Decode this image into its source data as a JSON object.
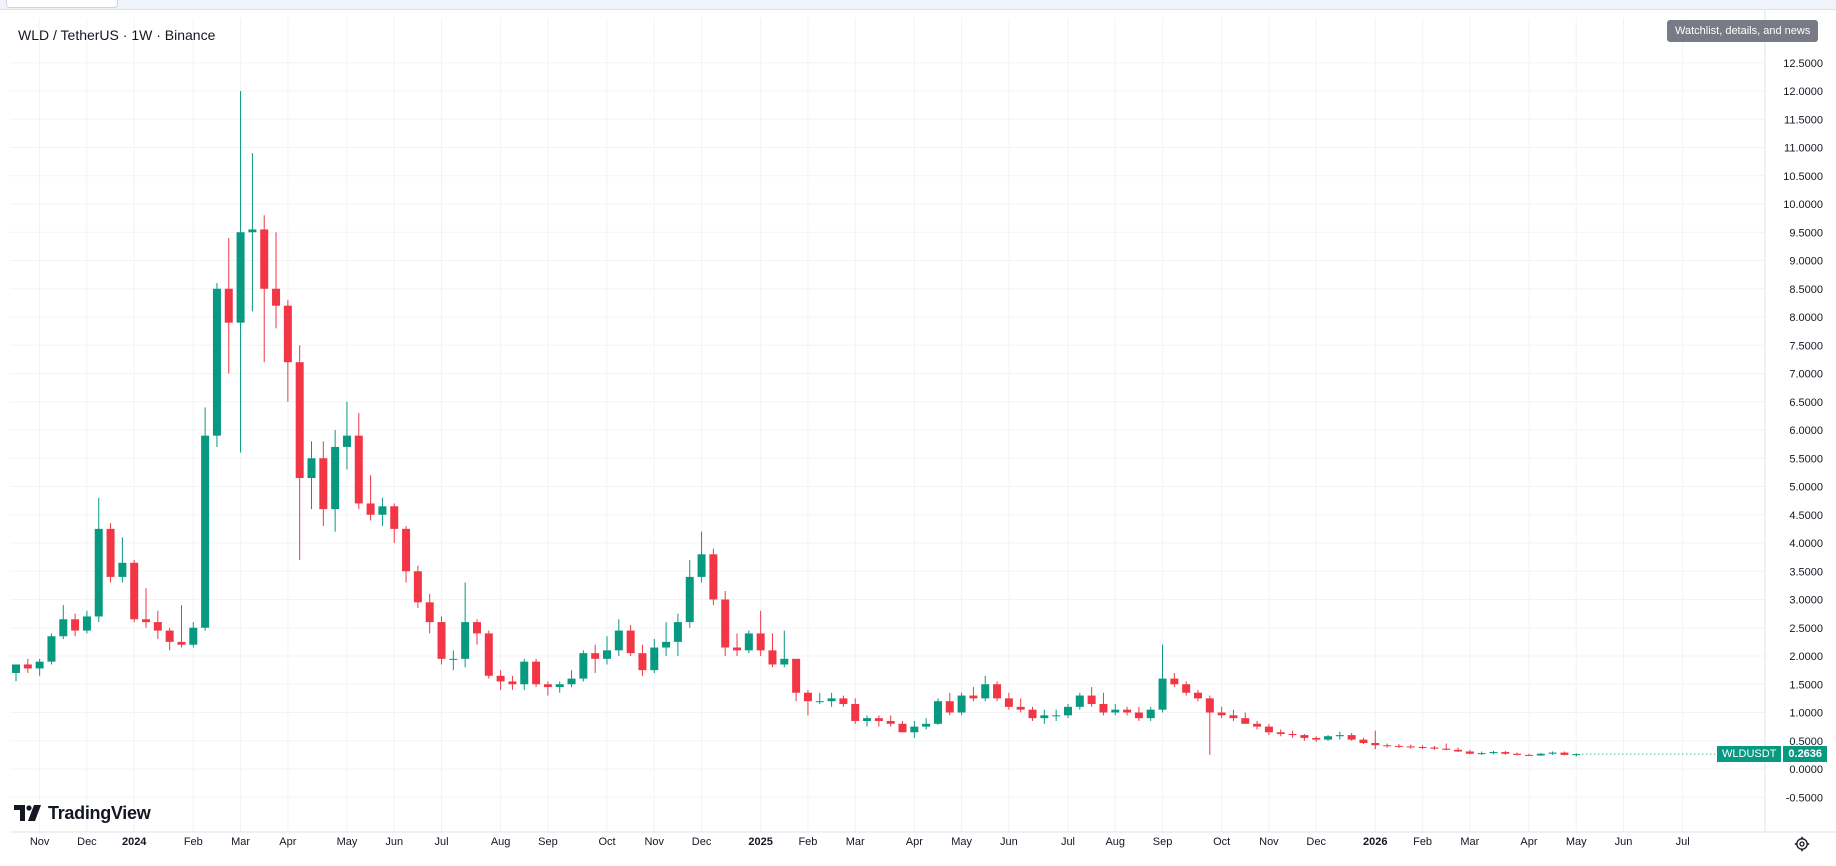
{
  "header": {
    "symbol_title": "WLD / TetherUS · 1W · Binance",
    "watchlist_button": "Watchlist, details, and news"
  },
  "brand": {
    "logo_text": "TradingView"
  },
  "last_price": {
    "symbol": "WLDUSDT",
    "value": "0.2636"
  },
  "colors": {
    "up": "#089981",
    "down": "#F23645",
    "grid": "#f2f3f5",
    "text": "#131722"
  },
  "chart_data": {
    "type": "candlestick",
    "title": "WLD / TetherUS · 1W · Binance",
    "xlabel": "",
    "ylabel": "",
    "ylim": [
      -0.7,
      12.9
    ],
    "grid": true,
    "y_ticks": [
      "12.5000",
      "12.0000",
      "11.5000",
      "11.0000",
      "10.5000",
      "10.0000",
      "9.5000",
      "9.0000",
      "8.5000",
      "8.0000",
      "7.5000",
      "7.0000",
      "6.5000",
      "6.0000",
      "5.5000",
      "5.0000",
      "4.5000",
      "4.0000",
      "3.5000",
      "3.0000",
      "2.5000",
      "2.0000",
      "1.5000",
      "1.0000",
      "0.5000",
      "0.0000",
      "-0.5000"
    ],
    "x_ticks": [
      {
        "label": "Nov",
        "week": 2,
        "bold": false
      },
      {
        "label": "Dec",
        "week": 6,
        "bold": false
      },
      {
        "label": "2024",
        "week": 10,
        "bold": true
      },
      {
        "label": "Feb",
        "week": 15,
        "bold": false
      },
      {
        "label": "Mar",
        "week": 19,
        "bold": false
      },
      {
        "label": "Apr",
        "week": 23,
        "bold": false
      },
      {
        "label": "May",
        "week": 28,
        "bold": false
      },
      {
        "label": "Jun",
        "week": 32,
        "bold": false
      },
      {
        "label": "Jul",
        "week": 36,
        "bold": false
      },
      {
        "label": "Aug",
        "week": 41,
        "bold": false
      },
      {
        "label": "Sep",
        "week": 45,
        "bold": false
      },
      {
        "label": "Oct",
        "week": 50,
        "bold": false
      },
      {
        "label": "Nov",
        "week": 54,
        "bold": false
      },
      {
        "label": "Dec",
        "week": 58,
        "bold": false
      },
      {
        "label": "2025",
        "week": 63,
        "bold": true
      },
      {
        "label": "Feb",
        "week": 67,
        "bold": false
      },
      {
        "label": "Mar",
        "week": 71,
        "bold": false
      },
      {
        "label": "Apr",
        "week": 76,
        "bold": false
      },
      {
        "label": "May",
        "week": 80,
        "bold": false
      },
      {
        "label": "Jun",
        "week": 84,
        "bold": false
      },
      {
        "label": "Jul",
        "week": 89,
        "bold": false
      },
      {
        "label": "Aug",
        "week": 93,
        "bold": false
      },
      {
        "label": "Sep",
        "week": 97,
        "bold": false
      },
      {
        "label": "Oct",
        "week": 102,
        "bold": false
      },
      {
        "label": "Nov",
        "week": 106,
        "bold": false
      },
      {
        "label": "Dec",
        "week": 110,
        "bold": false
      },
      {
        "label": "2026",
        "week": 115,
        "bold": true
      },
      {
        "label": "Feb",
        "week": 119,
        "bold": false
      },
      {
        "label": "Mar",
        "week": 123,
        "bold": false
      },
      {
        "label": "Apr",
        "week": 128,
        "bold": false
      },
      {
        "label": "May",
        "week": 132,
        "bold": false
      },
      {
        "label": "Jun",
        "week": 136,
        "bold": false
      },
      {
        "label": "Jul",
        "week": 141,
        "bold": false
      }
    ],
    "candles": [
      [
        1.7,
        1.85,
        1.55,
        1.85
      ],
      [
        1.85,
        1.95,
        1.7,
        1.78
      ],
      [
        1.78,
        1.95,
        1.65,
        1.9
      ],
      [
        1.9,
        2.4,
        1.85,
        2.35
      ],
      [
        2.35,
        2.9,
        2.3,
        2.65
      ],
      [
        2.65,
        2.75,
        2.35,
        2.45
      ],
      [
        2.45,
        2.8,
        2.4,
        2.7
      ],
      [
        2.7,
        4.8,
        2.6,
        4.25
      ],
      [
        4.25,
        4.35,
        3.3,
        3.4
      ],
      [
        3.4,
        4.1,
        3.3,
        3.65
      ],
      [
        3.65,
        3.7,
        2.6,
        2.65
      ],
      [
        2.65,
        3.2,
        2.5,
        2.6
      ],
      [
        2.6,
        2.8,
        2.3,
        2.45
      ],
      [
        2.45,
        2.5,
        2.1,
        2.25
      ],
      [
        2.25,
        2.9,
        2.15,
        2.2
      ],
      [
        2.2,
        2.6,
        2.15,
        2.5
      ],
      [
        2.5,
        6.4,
        2.45,
        5.9
      ],
      [
        5.9,
        8.6,
        5.7,
        8.5
      ],
      [
        8.5,
        9.4,
        7.0,
        7.9
      ],
      [
        7.9,
        12.0,
        5.6,
        9.5
      ],
      [
        9.5,
        10.9,
        8.1,
        9.55
      ],
      [
        9.55,
        9.8,
        7.2,
        8.5
      ],
      [
        8.5,
        9.5,
        7.8,
        8.2
      ],
      [
        8.2,
        8.3,
        6.5,
        7.2
      ],
      [
        7.2,
        7.5,
        3.7,
        5.15
      ],
      [
        5.15,
        5.8,
        4.6,
        5.5
      ],
      [
        5.5,
        5.8,
        4.3,
        4.6
      ],
      [
        4.6,
        6.0,
        4.2,
        5.7
      ],
      [
        5.7,
        6.5,
        5.3,
        5.9
      ],
      [
        5.9,
        6.3,
        4.6,
        4.7
      ],
      [
        4.7,
        5.2,
        4.4,
        4.5
      ],
      [
        4.5,
        4.8,
        4.3,
        4.65
      ],
      [
        4.65,
        4.7,
        4.0,
        4.25
      ],
      [
        4.25,
        4.3,
        3.3,
        3.5
      ],
      [
        3.5,
        3.6,
        2.85,
        2.95
      ],
      [
        2.95,
        3.1,
        2.4,
        2.6
      ],
      [
        2.6,
        2.7,
        1.85,
        1.95
      ],
      [
        1.95,
        2.1,
        1.75,
        1.95
      ],
      [
        1.95,
        3.3,
        1.8,
        2.6
      ],
      [
        2.6,
        2.65,
        2.2,
        2.4
      ],
      [
        2.4,
        2.45,
        1.6,
        1.65
      ],
      [
        1.65,
        1.75,
        1.4,
        1.55
      ],
      [
        1.55,
        1.65,
        1.4,
        1.5
      ],
      [
        1.5,
        1.95,
        1.4,
        1.9
      ],
      [
        1.9,
        1.95,
        1.45,
        1.5
      ],
      [
        1.5,
        1.55,
        1.3,
        1.45
      ],
      [
        1.45,
        1.55,
        1.35,
        1.5
      ],
      [
        1.5,
        1.75,
        1.45,
        1.6
      ],
      [
        1.6,
        2.1,
        1.55,
        2.05
      ],
      [
        2.05,
        2.2,
        1.7,
        1.95
      ],
      [
        1.95,
        2.35,
        1.85,
        2.1
      ],
      [
        2.1,
        2.65,
        2.0,
        2.45
      ],
      [
        2.45,
        2.55,
        2.0,
        2.05
      ],
      [
        2.05,
        2.2,
        1.65,
        1.75
      ],
      [
        1.75,
        2.3,
        1.7,
        2.15
      ],
      [
        2.15,
        2.6,
        2.0,
        2.25
      ],
      [
        2.25,
        2.75,
        2.0,
        2.6
      ],
      [
        2.6,
        3.7,
        2.5,
        3.4
      ],
      [
        3.4,
        4.2,
        3.3,
        3.8
      ],
      [
        3.8,
        3.9,
        2.9,
        3.0
      ],
      [
        3.0,
        3.15,
        2.0,
        2.15
      ],
      [
        2.15,
        2.4,
        2.0,
        2.1
      ],
      [
        2.1,
        2.45,
        2.05,
        2.4
      ],
      [
        2.4,
        2.8,
        2.0,
        2.1
      ],
      [
        2.1,
        2.4,
        1.8,
        1.85
      ],
      [
        1.85,
        2.45,
        1.8,
        1.95
      ],
      [
        1.95,
        1.95,
        1.2,
        1.35
      ],
      [
        1.35,
        1.4,
        0.95,
        1.2
      ],
      [
        1.2,
        1.35,
        1.15,
        1.2
      ],
      [
        1.2,
        1.35,
        1.1,
        1.25
      ],
      [
        1.25,
        1.3,
        1.1,
        1.15
      ],
      [
        1.15,
        1.25,
        0.8,
        0.85
      ],
      [
        0.85,
        0.95,
        0.75,
        0.9
      ],
      [
        0.9,
        0.95,
        0.75,
        0.85
      ],
      [
        0.85,
        0.95,
        0.75,
        0.8
      ],
      [
        0.8,
        0.85,
        0.65,
        0.65
      ],
      [
        0.65,
        0.85,
        0.55,
        0.75
      ],
      [
        0.75,
        0.9,
        0.7,
        0.8
      ],
      [
        0.8,
        1.25,
        0.78,
        1.2
      ],
      [
        1.2,
        1.35,
        0.95,
        1.0
      ],
      [
        1.0,
        1.35,
        0.95,
        1.3
      ],
      [
        1.3,
        1.45,
        1.2,
        1.25
      ],
      [
        1.25,
        1.65,
        1.2,
        1.5
      ],
      [
        1.5,
        1.55,
        1.2,
        1.25
      ],
      [
        1.25,
        1.35,
        1.05,
        1.1
      ],
      [
        1.1,
        1.25,
        1.0,
        1.05
      ],
      [
        1.05,
        1.1,
        0.85,
        0.9
      ],
      [
        0.9,
        1.05,
        0.8,
        0.95
      ],
      [
        0.95,
        1.05,
        0.85,
        0.95
      ],
      [
        0.95,
        1.15,
        0.9,
        1.1
      ],
      [
        1.1,
        1.35,
        1.05,
        1.3
      ],
      [
        1.3,
        1.45,
        1.1,
        1.15
      ],
      [
        1.15,
        1.35,
        0.95,
        1.0
      ],
      [
        1.0,
        1.15,
        0.95,
        1.05
      ],
      [
        1.05,
        1.1,
        0.95,
        1.0
      ],
      [
        1.0,
        1.1,
        0.85,
        0.9
      ],
      [
        0.9,
        1.1,
        0.85,
        1.05
      ],
      [
        1.05,
        2.2,
        1.0,
        1.6
      ],
      [
        1.6,
        1.7,
        1.45,
        1.5
      ],
      [
        1.5,
        1.55,
        1.3,
        1.35
      ],
      [
        1.35,
        1.4,
        1.2,
        1.25
      ],
      [
        1.25,
        1.3,
        0.25,
        1.0
      ],
      [
        1.0,
        1.1,
        0.9,
        0.95
      ],
      [
        0.95,
        1.05,
        0.85,
        0.9
      ],
      [
        0.9,
        1.0,
        0.8,
        0.8
      ],
      [
        0.8,
        0.85,
        0.7,
        0.75
      ],
      [
        0.75,
        0.8,
        0.6,
        0.65
      ],
      [
        0.65,
        0.7,
        0.58,
        0.62
      ],
      [
        0.62,
        0.68,
        0.55,
        0.6
      ],
      [
        0.6,
        0.62,
        0.5,
        0.55
      ],
      [
        0.55,
        0.58,
        0.48,
        0.52
      ],
      [
        0.52,
        0.6,
        0.5,
        0.58
      ],
      [
        0.58,
        0.66,
        0.52,
        0.6
      ],
      [
        0.6,
        0.64,
        0.5,
        0.52
      ],
      [
        0.52,
        0.55,
        0.44,
        0.46
      ],
      [
        0.46,
        0.68,
        0.35,
        0.42
      ],
      [
        0.42,
        0.45,
        0.38,
        0.41
      ],
      [
        0.41,
        0.44,
        0.37,
        0.4
      ],
      [
        0.4,
        0.43,
        0.36,
        0.39
      ],
      [
        0.39,
        0.42,
        0.35,
        0.38
      ],
      [
        0.38,
        0.41,
        0.34,
        0.36
      ],
      [
        0.36,
        0.45,
        0.33,
        0.34
      ],
      [
        0.34,
        0.38,
        0.3,
        0.31
      ],
      [
        0.31,
        0.34,
        0.26,
        0.27
      ],
      [
        0.27,
        0.31,
        0.25,
        0.28
      ],
      [
        0.28,
        0.32,
        0.26,
        0.3
      ],
      [
        0.3,
        0.32,
        0.25,
        0.27
      ],
      [
        0.27,
        0.29,
        0.24,
        0.25
      ],
      [
        0.25,
        0.27,
        0.23,
        0.24
      ],
      [
        0.24,
        0.28,
        0.23,
        0.27
      ],
      [
        0.27,
        0.31,
        0.25,
        0.29
      ],
      [
        0.29,
        0.31,
        0.24,
        0.25
      ],
      [
        0.25,
        0.28,
        0.22,
        0.2636
      ]
    ]
  }
}
